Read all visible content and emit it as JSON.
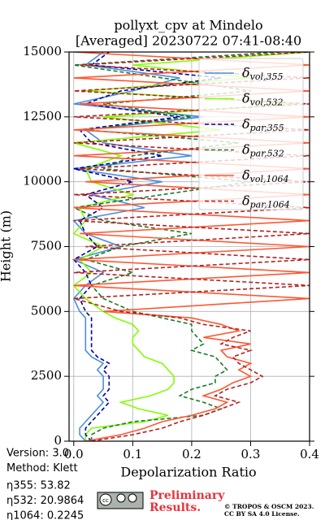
{
  "chart_data": {
    "type": "line",
    "title": "pollyxt_cpv at Mindelo",
    "subtitle": "[Averaged] 20230722 07:41-08:40",
    "xlabel": "Depolarization Ratio",
    "ylabel": "Height (m)",
    "xlim": [
      -0.008,
      0.4
    ],
    "ylim": [
      0,
      15000
    ],
    "xticks": [
      {
        "value": 0,
        "label": "0.0"
      },
      0.1,
      0.2,
      0.3,
      0.4
    ],
    "yticks": [
      0,
      2500,
      5000,
      7500,
      10000,
      12500,
      15000
    ],
    "grid": true,
    "legend": "upper right",
    "y": [
      0,
      250,
      500,
      750,
      1000,
      1250,
      1500,
      1750,
      2000,
      2250,
      2500,
      2750,
      3000,
      3250,
      3500,
      3750,
      4000,
      4250,
      4500,
      4750,
      5000,
      5500,
      6000,
      6500,
      7000,
      7500,
      8000,
      8500,
      9000,
      9500,
      10000,
      10500,
      11000,
      11500,
      12000,
      12500,
      13000,
      13500,
      14000,
      14500,
      15000
    ],
    "series": [
      {
        "name": "δvol,355",
        "color": "#4a8fe0",
        "linestyle": "-",
        "values": [
          0.02,
          0.01,
          0.01,
          0.02,
          0.03,
          0.04,
          0.05,
          0.04,
          0.05,
          0.05,
          0.05,
          0.04,
          0.05,
          0.03,
          0.02,
          0.02,
          0.02,
          0.02,
          0.02,
          0.02,
          0.01,
          0.0,
          0.02,
          0.05,
          0.0,
          0.08,
          0.02,
          0.0,
          0.12,
          0.03,
          0.15,
          0.0,
          0.2,
          0.05,
          0.02,
          0.22,
          0.0,
          0.1,
          0.18,
          0.02,
          0.05
        ]
      },
      {
        "name": "δvol,532",
        "color": "#80ff00",
        "linestyle": "-",
        "values": [
          0.02,
          0.02,
          0.03,
          0.12,
          0.16,
          0.11,
          0.08,
          0.13,
          0.16,
          0.17,
          0.17,
          0.16,
          0.15,
          0.12,
          0.11,
          0.1,
          0.1,
          0.11,
          0.1,
          0.07,
          0.05,
          0.02,
          0.0,
          0.03,
          0.01,
          0.05,
          0.0,
          0.02,
          0.01,
          0.1,
          0.03,
          0.02,
          0.08,
          0.0,
          0.25,
          0.05,
          0.38,
          0.02,
          0.3,
          0.1,
          0.4
        ]
      },
      {
        "name": "δpar,355",
        "color": "#0000a0",
        "linestyle": "--",
        "values": [
          0.03,
          0.02,
          0.02,
          0.03,
          0.04,
          0.05,
          0.06,
          0.05,
          0.06,
          0.06,
          0.06,
          0.05,
          0.06,
          0.04,
          0.03,
          0.03,
          0.03,
          0.03,
          0.03,
          0.03,
          0.02,
          0.01,
          0.03,
          0.02,
          0.0,
          0.04,
          0.02,
          0.01,
          0.05,
          0.02,
          0.1,
          0.0,
          0.15,
          0.03,
          0.01,
          0.18,
          0.02,
          0.08,
          0.25,
          0.03,
          0.06
        ]
      },
      {
        "name": "δpar,532",
        "color": "#1a7a2a",
        "linestyle": "--",
        "values": [
          0.03,
          0.03,
          0.05,
          0.1,
          0.22,
          0.25,
          0.22,
          0.18,
          0.2,
          0.24,
          0.24,
          0.26,
          0.25,
          0.24,
          0.2,
          0.22,
          0.21,
          0.2,
          0.2,
          0.15,
          0.1,
          0.05,
          0.03,
          0.1,
          0.02,
          0.08,
          0.2,
          0.05,
          0.0,
          0.15,
          0.3,
          0.05,
          0.1,
          0.28,
          0.02,
          0.2,
          0.05,
          0.3,
          0.15,
          0.0,
          0.35
        ]
      },
      {
        "name": "δvol,1064",
        "color": "#ff5733",
        "linestyle": "-",
        "values": [
          0.02,
          0.08,
          0.12,
          0.15,
          0.2,
          0.24,
          0.26,
          0.22,
          0.25,
          0.27,
          0.3,
          0.28,
          0.3,
          0.26,
          0.25,
          0.3,
          0.22,
          0.28,
          0.25,
          0.2,
          0.05,
          0.4,
          0.0,
          0.4,
          0.0,
          0.4,
          0.01,
          0.4,
          0.0,
          0.4,
          0.02,
          0.4,
          0.0,
          0.4,
          0.0,
          0.4,
          0.01,
          0.4,
          0.0,
          0.4,
          0.0
        ]
      },
      {
        "name": "δpar,1064",
        "color": "#b22222",
        "linestyle": "--",
        "values": [
          0.03,
          0.1,
          0.15,
          0.18,
          0.22,
          0.25,
          0.28,
          0.24,
          0.26,
          0.3,
          0.32,
          0.3,
          0.28,
          0.27,
          0.3,
          0.25,
          0.27,
          0.3,
          0.22,
          0.18,
          0.08,
          0.0,
          0.4,
          0.0,
          0.4,
          0.02,
          0.4,
          0.0,
          0.4,
          0.0,
          0.4,
          0.01,
          0.4,
          0.0,
          0.4,
          0.0,
          0.4,
          0.0,
          0.4,
          0.01,
          0.4
        ]
      }
    ],
    "annotations": [
      "Version: 3.0",
      "Method: Klett",
      "η355:  53.82",
      "η532: 20.9864",
      "η1064: 0.2245"
    ],
    "notice": [
      "Preliminary",
      "Results."
    ],
    "copyright": [
      "© TROPOS & OSCM 2023.",
      "CC BY SA 4.0 License."
    ]
  }
}
